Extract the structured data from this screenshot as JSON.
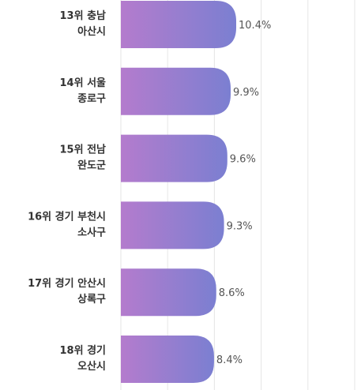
{
  "chart_data": {
    "type": "bar",
    "orientation": "horizontal",
    "categories": [
      [
        "13위 충남",
        "아산시"
      ],
      [
        "14위 서울",
        "종로구"
      ],
      [
        "15위 전남",
        "완도군"
      ],
      [
        "16위 경기 부천시",
        "소사구"
      ],
      [
        "17위 경기 안산시",
        "상록구"
      ],
      [
        "18위 경기",
        "오산시"
      ]
    ],
    "values": [
      10.4,
      9.9,
      9.6,
      9.3,
      8.6,
      8.4
    ],
    "value_labels": [
      "10.4%",
      "9.9%",
      "9.6%",
      "9.3%",
      "8.6%",
      "8.4%"
    ],
    "grid": true,
    "bar_gradient": [
      "#b47ccd",
      "#7b7fd1"
    ]
  }
}
